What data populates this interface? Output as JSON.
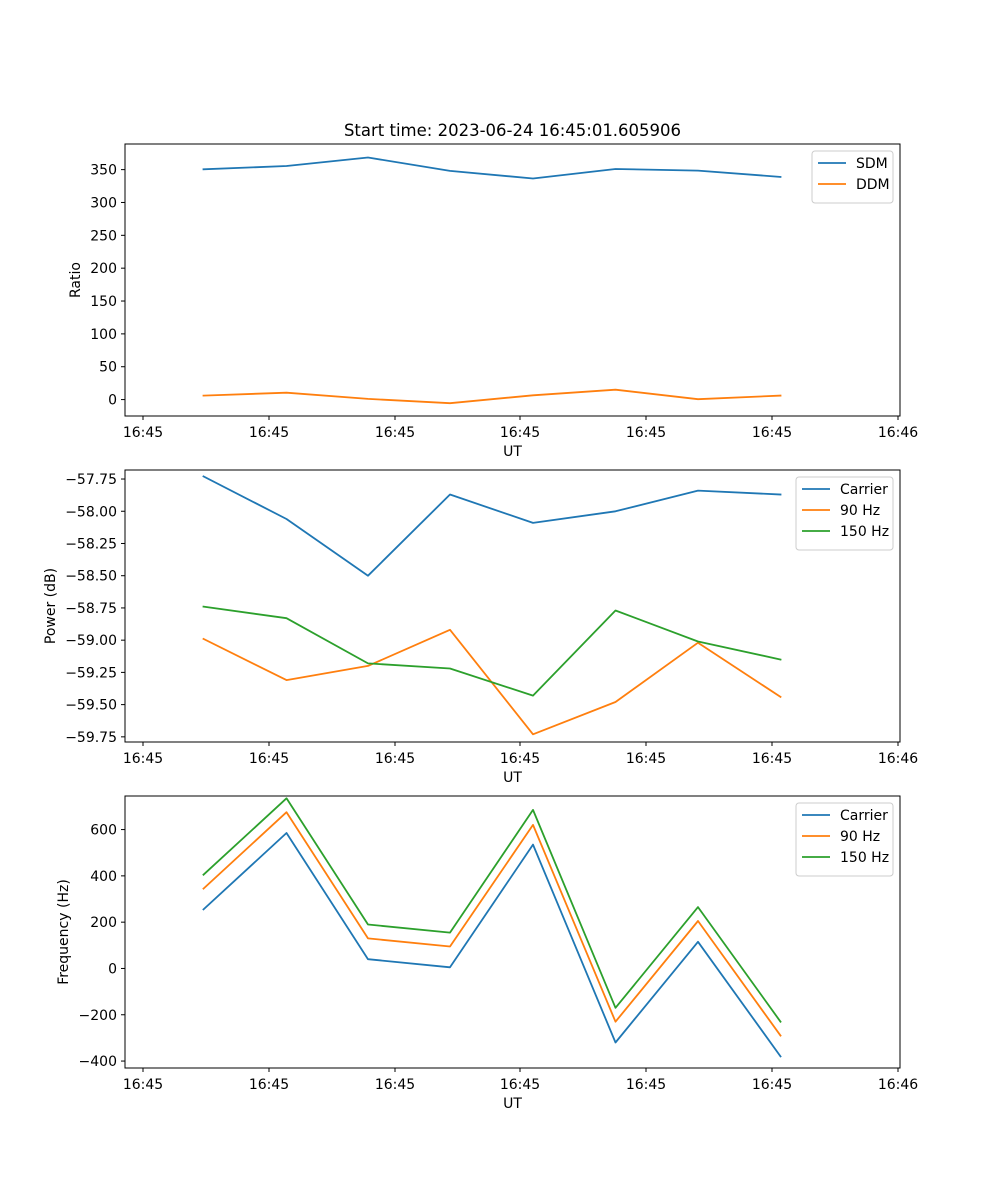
{
  "title": "Start time: 2023-06-24 16:45:01.605906",
  "colors": {
    "blue": "#1f77b4",
    "orange": "#ff7f0e",
    "green": "#2ca02c"
  },
  "chart_data": [
    {
      "type": "line",
      "xlabel": "UT",
      "ylabel": "Ratio",
      "xtick_labels": [
        "16:45",
        "16:45",
        "16:45",
        "16:45",
        "16:45",
        "16:45",
        "16:46"
      ],
      "yticks": [
        0,
        50,
        100,
        150,
        200,
        250,
        300,
        350
      ],
      "ylim": [
        -25,
        389
      ],
      "legend_position": "top-right",
      "series": [
        {
          "name": "SDM",
          "color": "#1f77b4",
          "values": [
            350.5,
            355.5,
            368.5,
            348,
            336.5,
            351,
            348.5,
            339
          ]
        },
        {
          "name": "DDM",
          "color": "#ff7f0e",
          "values": [
            6,
            10.5,
            1,
            -5.5,
            6.5,
            15,
            0.5,
            6
          ]
        }
      ]
    },
    {
      "type": "line",
      "xlabel": "UT",
      "ylabel": "Power (dB)",
      "xtick_labels": [
        "16:45",
        "16:45",
        "16:45",
        "16:45",
        "16:45",
        "16:45",
        "16:46"
      ],
      "yticks": [
        -57.75,
        -58.0,
        -58.25,
        -58.5,
        -58.75,
        -59.0,
        -59.25,
        -59.5,
        -59.75
      ],
      "ytick_labels": [
        "−57.75",
        "−58.00",
        "−58.25",
        "−58.50",
        "−58.75",
        "−59.00",
        "−59.25",
        "−59.50",
        "−59.75"
      ],
      "ylim": [
        -59.79,
        -57.68
      ],
      "legend_position": "top-right",
      "series": [
        {
          "name": "Carrier",
          "color": "#1f77b4",
          "values": [
            -57.73,
            -58.06,
            -58.5,
            -57.87,
            -58.09,
            -58.0,
            -57.84,
            -57.87
          ]
        },
        {
          "name": "90 Hz",
          "color": "#ff7f0e",
          "values": [
            -58.99,
            -59.31,
            -59.2,
            -58.92,
            -59.73,
            -59.48,
            -59.02,
            -59.44
          ]
        },
        {
          "name": "150 Hz",
          "color": "#2ca02c",
          "values": [
            -58.74,
            -58.83,
            -59.18,
            -59.22,
            -59.43,
            -58.77,
            -59.01,
            -59.15
          ]
        }
      ]
    },
    {
      "type": "line",
      "xlabel": "UT",
      "ylabel": "Frequency (Hz)",
      "xtick_labels": [
        "16:45",
        "16:45",
        "16:45",
        "16:45",
        "16:45",
        "16:45",
        "16:46"
      ],
      "yticks": [
        -400,
        -200,
        0,
        200,
        400,
        600
      ],
      "ytick_labels": [
        "−400",
        "−200",
        "0",
        "200",
        "400",
        "600"
      ],
      "ylim": [
        -430,
        745
      ],
      "legend_position": "top-right",
      "series": [
        {
          "name": "Carrier",
          "color": "#1f77b4",
          "values": [
            255,
            585,
            40,
            5,
            535,
            -320,
            115,
            -380
          ]
        },
        {
          "name": "90 Hz",
          "color": "#ff7f0e",
          "values": [
            345,
            675,
            130,
            95,
            620,
            -230,
            205,
            -290
          ]
        },
        {
          "name": "150 Hz",
          "color": "#2ca02c",
          "values": [
            405,
            735,
            190,
            155,
            685,
            -170,
            265,
            -230
          ]
        }
      ]
    }
  ]
}
